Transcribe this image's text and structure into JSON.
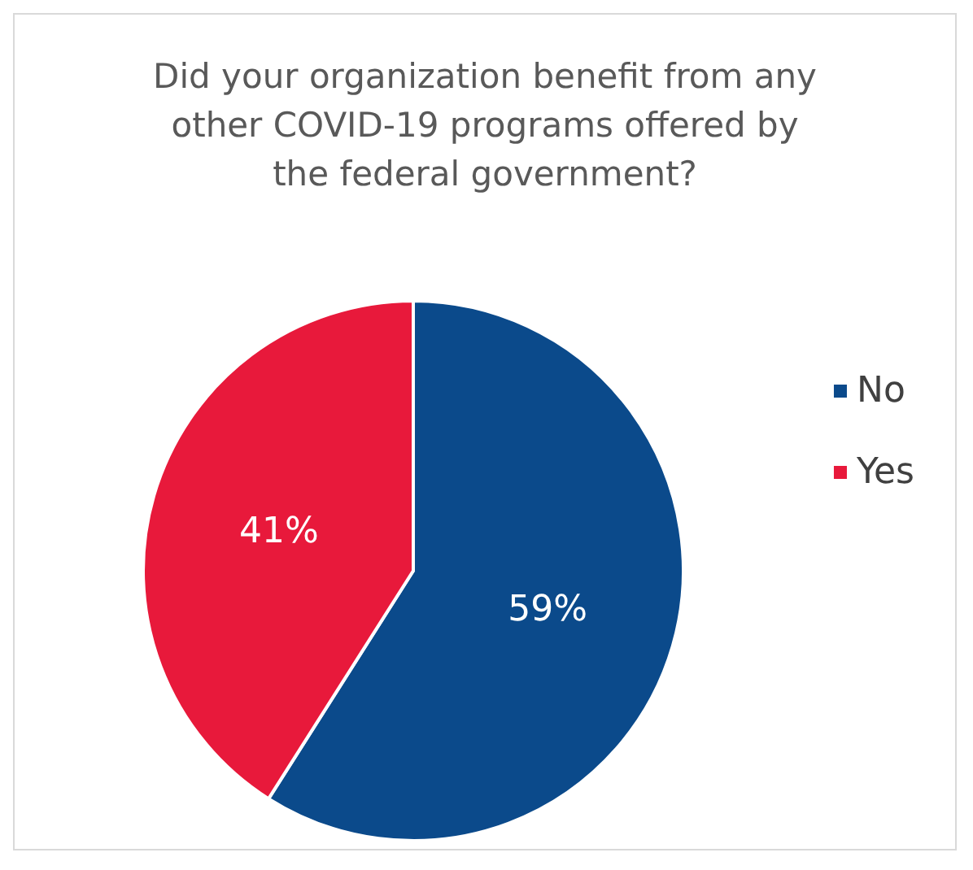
{
  "chart_data": {
    "type": "pie",
    "title": "Did your organization benefit from any\nother COVID-19 programs offered by\nthe federal government?",
    "categories": [
      "No",
      "Yes"
    ],
    "values": [
      59,
      41
    ],
    "colors": [
      "#0b4a8b",
      "#e8193b"
    ],
    "value_labels": [
      "59%",
      "41%"
    ],
    "legend": "right"
  }
}
